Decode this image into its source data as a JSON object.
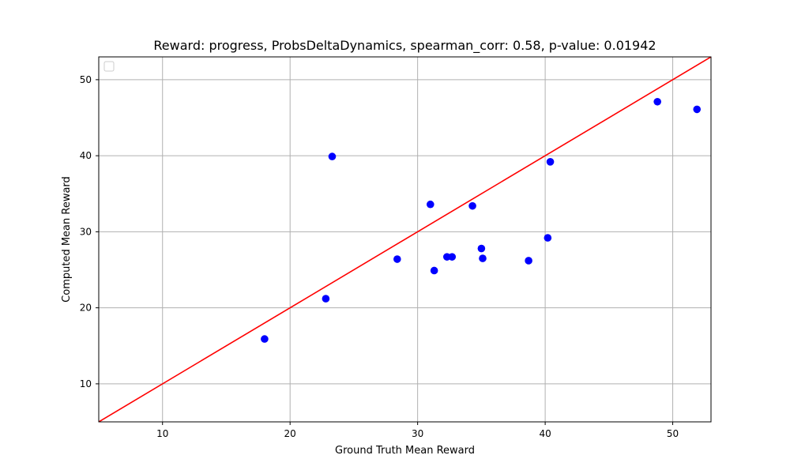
{
  "chart_data": {
    "type": "scatter",
    "title": "Reward: progress, ProbsDeltaDynamics, spearman_corr: 0.58, p-value: 0.01942",
    "xlabel": "Ground Truth Mean Reward",
    "ylabel": "Computed Mean Reward",
    "xlim": [
      5,
      53
    ],
    "ylim": [
      5,
      53
    ],
    "xticks": [
      10,
      20,
      30,
      40,
      50
    ],
    "yticks": [
      10,
      20,
      30,
      40,
      50
    ],
    "grid": true,
    "legend": {
      "placement": "top-left",
      "entries": []
    },
    "point_color": "#0000ff",
    "line_color": "#ff0000",
    "reference_line": {
      "x": [
        5,
        53
      ],
      "y": [
        5,
        53
      ]
    },
    "points": [
      {
        "x": 18.0,
        "y": 15.9
      },
      {
        "x": 22.8,
        "y": 21.2
      },
      {
        "x": 23.3,
        "y": 39.9
      },
      {
        "x": 28.4,
        "y": 26.4
      },
      {
        "x": 31.0,
        "y": 33.6
      },
      {
        "x": 31.3,
        "y": 24.9
      },
      {
        "x": 32.3,
        "y": 26.7
      },
      {
        "x": 32.7,
        "y": 26.7
      },
      {
        "x": 34.3,
        "y": 33.4
      },
      {
        "x": 35.0,
        "y": 27.8
      },
      {
        "x": 35.1,
        "y": 26.5
      },
      {
        "x": 38.7,
        "y": 26.2
      },
      {
        "x": 40.2,
        "y": 29.2
      },
      {
        "x": 40.4,
        "y": 39.2
      },
      {
        "x": 48.8,
        "y": 47.1
      },
      {
        "x": 51.9,
        "y": 46.1
      }
    ]
  }
}
